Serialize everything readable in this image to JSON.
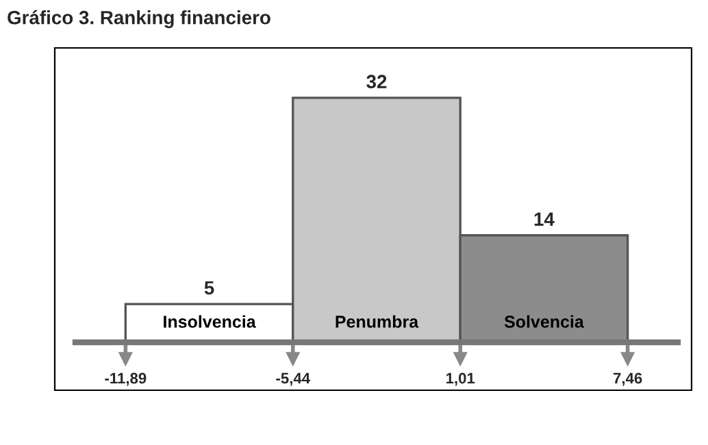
{
  "chart_data": {
    "type": "bar",
    "title": "Gráfico 3. Ranking financiero",
    "categories": [
      "Insolvencia",
      "Penumbra",
      "Solvencia"
    ],
    "values": [
      5,
      32,
      14
    ],
    "colors": [
      "#ffffff",
      "#c8c8c8",
      "#8c8c8c"
    ],
    "data_labels": true,
    "annotations": [
      "-11,89",
      "-5,44",
      "1,01",
      "7,46"
    ]
  }
}
